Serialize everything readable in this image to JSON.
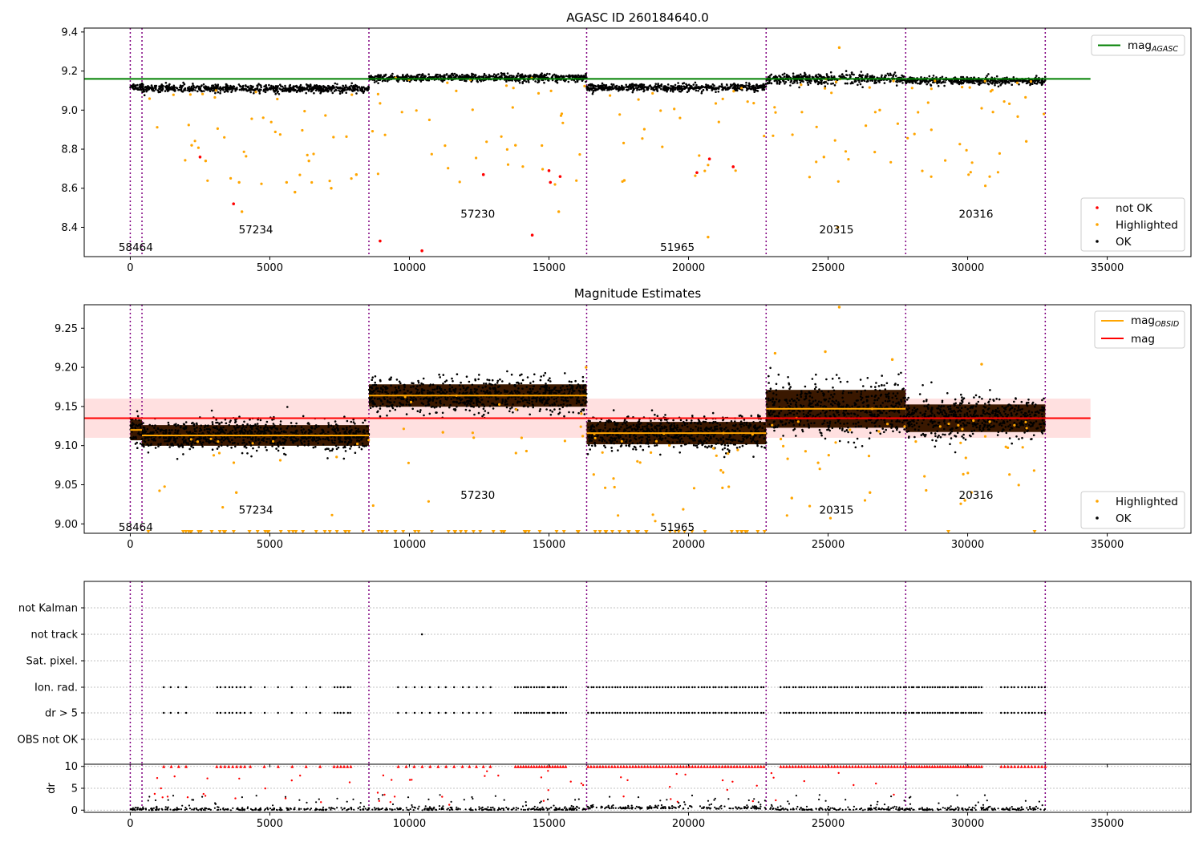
{
  "colors": {
    "ok": "#000000",
    "highlighted": "#ffa500",
    "not_ok": "#ff0000",
    "agasc_line": "#008000",
    "obsid_line": "#ffa500",
    "mag_line": "#ff0000",
    "mag_band": "#ffe0e0",
    "obs_boundary": "#800080",
    "grid": "#b0b0b0"
  },
  "chart_data": [
    {
      "type": "scatter",
      "title": "AGASC ID 260184640.0",
      "xlim": [
        -1650,
        38000
      ],
      "ylim": [
        8.25,
        9.42
      ],
      "xticks": [
        0,
        5000,
        10000,
        15000,
        20000,
        25000,
        30000,
        35000
      ],
      "yticks": [
        8.4,
        8.6,
        8.8,
        9.0,
        9.2,
        9.4
      ],
      "ytick_labels": [
        "8.4",
        "8.6",
        "8.8",
        "9.0",
        "9.2",
        "9.4"
      ],
      "obs_boundaries": [
        0,
        420,
        8550,
        16350,
        22780,
        27780,
        32780
      ],
      "segments": [
        {
          "start": 0,
          "end": 420,
          "mean": 9.12,
          "spread": 0.012
        },
        {
          "start": 420,
          "end": 8550,
          "mean": 9.11,
          "spread": 0.012
        },
        {
          "start": 8550,
          "end": 16350,
          "mean": 9.165,
          "spread": 0.012
        },
        {
          "start": 16350,
          "end": 22780,
          "mean": 9.115,
          "spread": 0.012
        },
        {
          "start": 22780,
          "end": 27780,
          "mean": 9.16,
          "spread": 0.016
        },
        {
          "start": 27780,
          "end": 32780,
          "mean": 9.15,
          "spread": 0.012
        }
      ],
      "obsid_labels": [
        {
          "text": "58464",
          "x": 200,
          "y": 8.3
        },
        {
          "text": "57234",
          "x": 4500,
          "y": 8.39
        },
        {
          "text": "57230",
          "x": 12450,
          "y": 8.47
        },
        {
          "text": "51965",
          "x": 19600,
          "y": 8.3
        },
        {
          "text": "20315",
          "x": 25300,
          "y": 8.39
        },
        {
          "text": "20316",
          "x": 30300,
          "y": 8.47
        }
      ],
      "reference_line": {
        "name": "mag_AGASC",
        "y": 9.16,
        "x_start": -1650,
        "x_end": 34400
      },
      "not_ok_points": [
        {
          "x": 2500,
          "y": 8.76
        },
        {
          "x": 3700,
          "y": 8.52
        },
        {
          "x": 8950,
          "y": 8.33
        },
        {
          "x": 10450,
          "y": 8.28
        },
        {
          "x": 12650,
          "y": 8.67
        },
        {
          "x": 14400,
          "y": 8.36
        },
        {
          "x": 15000,
          "y": 8.69
        },
        {
          "x": 15050,
          "y": 8.63
        },
        {
          "x": 15400,
          "y": 8.66
        },
        {
          "x": 20300,
          "y": 8.68
        },
        {
          "x": 20750,
          "y": 8.75
        },
        {
          "x": 21600,
          "y": 8.71
        }
      ],
      "highlighted_points": [
        {
          "x": 25400,
          "y": 9.32
        },
        {
          "x": 24850,
          "y": 8.76
        },
        {
          "x": 20700,
          "y": 8.35
        },
        {
          "x": 25350,
          "y": 8.4
        },
        {
          "x": 32100,
          "y": 8.84
        },
        {
          "x": 15350,
          "y": 8.48
        },
        {
          "x": 17700,
          "y": 8.64
        },
        {
          "x": 26850,
          "y": 9.0
        },
        {
          "x": 2700,
          "y": 8.74
        },
        {
          "x": 4000,
          "y": 8.48
        },
        {
          "x": 7200,
          "y": 8.6
        },
        {
          "x": 5600,
          "y": 8.63
        },
        {
          "x": 5900,
          "y": 8.58
        },
        {
          "x": 3900,
          "y": 8.63
        },
        {
          "x": 8100,
          "y": 8.67
        },
        {
          "x": 2200,
          "y": 8.82
        },
        {
          "x": 6400,
          "y": 8.74
        },
        {
          "x": 13800,
          "y": 8.82
        }
      ],
      "legend": {
        "entries": [
          "not OK",
          "Highlighted",
          "OK"
        ],
        "position": "lower right"
      },
      "legend_top": {
        "entries": [
          "mag_AGASC"
        ],
        "position": "upper right"
      }
    },
    {
      "type": "scatter",
      "title": "Magnitude Estimates",
      "xlim": [
        -1650,
        38000
      ],
      "ylim": [
        8.988,
        9.28
      ],
      "xticks": [
        0,
        5000,
        10000,
        15000,
        20000,
        25000,
        30000,
        35000
      ],
      "yticks": [
        9.0,
        9.05,
        9.1,
        9.15,
        9.2,
        9.25
      ],
      "ytick_labels": [
        "9.00",
        "9.05",
        "9.10",
        "9.15",
        "9.20",
        "9.25"
      ],
      "obs_boundaries": [
        0,
        420,
        8550,
        16350,
        22780,
        27780,
        32780
      ],
      "segments": [
        {
          "start": 0,
          "end": 420,
          "mean": 9.12,
          "spread": 0.012
        },
        {
          "start": 420,
          "end": 8550,
          "mean": 9.113,
          "spread": 0.012
        },
        {
          "start": 8550,
          "end": 16350,
          "mean": 9.164,
          "spread": 0.013
        },
        {
          "start": 16350,
          "end": 22780,
          "mean": 9.116,
          "spread": 0.013
        },
        {
          "start": 22780,
          "end": 27780,
          "mean": 9.147,
          "spread": 0.022
        },
        {
          "start": 27780,
          "end": 32780,
          "mean": 9.135,
          "spread": 0.016
        }
      ],
      "obsid_labels": [
        {
          "text": "58464",
          "x": 200,
          "y": 8.996
        },
        {
          "text": "57234",
          "x": 4500,
          "y": 9.018
        },
        {
          "text": "57230",
          "x": 12450,
          "y": 9.037
        },
        {
          "text": "51965",
          "x": 19600,
          "y": 8.996
        },
        {
          "text": "20315",
          "x": 25300,
          "y": 9.018
        },
        {
          "text": "20316",
          "x": 30300,
          "y": 9.037
        }
      ],
      "mag_line": {
        "name": "mag",
        "y": 9.135,
        "band": [
          9.11,
          9.16
        ],
        "x_start": -1650,
        "x_end": 34400
      },
      "obsid_line_name": "mag_OBSID",
      "highlighted_points": [
        {
          "x": 25400,
          "y": 9.278
        },
        {
          "x": 24900,
          "y": 9.22
        },
        {
          "x": 23100,
          "y": 9.218
        },
        {
          "x": 27300,
          "y": 9.21
        },
        {
          "x": 30500,
          "y": 9.204
        },
        {
          "x": 16330,
          "y": 9.2
        },
        {
          "x": 11200,
          "y": 9.117
        },
        {
          "x": 26500,
          "y": 9.04
        },
        {
          "x": 29900,
          "y": 9.03
        },
        {
          "x": 3800,
          "y": 9.04
        },
        {
          "x": 23700,
          "y": 9.033
        }
      ],
      "legend": {
        "entries": [
          "Highlighted",
          "OK"
        ],
        "position": "lower right"
      },
      "legend_top": {
        "entries": [
          "mag_OBSID",
          "mag"
        ],
        "position": "upper right"
      }
    },
    {
      "type": "scatter",
      "title": "",
      "xlim": [
        -1650,
        38000
      ],
      "flags": [
        "not Kalman",
        "not track",
        "Sat. pixel.",
        "Ion. rad.",
        "dr > 5",
        "OBS not OK"
      ],
      "obs_boundaries": [
        0,
        420,
        8550,
        16350,
        22780,
        27780,
        32780
      ],
      "not_track_points": [
        {
          "x": 10450
        }
      ],
      "flag_intervals": [
        {
          "start": 1200,
          "end": 2000,
          "count": 4
        },
        {
          "start": 3100,
          "end": 4100,
          "count": 8
        },
        {
          "start": 4300,
          "end": 6800,
          "count": 6
        },
        {
          "start": 7300,
          "end": 7900,
          "count": 6
        },
        {
          "start": 9600,
          "end": 11600,
          "count": 8
        },
        {
          "start": 11900,
          "end": 12900,
          "count": 5
        },
        {
          "start": 13800,
          "end": 15600,
          "count": 20
        },
        {
          "start": 16400,
          "end": 22700,
          "count": 60
        },
        {
          "start": 23300,
          "end": 27700,
          "count": 42
        },
        {
          "start": 27800,
          "end": 30500,
          "count": 30
        },
        {
          "start": 31200,
          "end": 32780,
          "count": 14
        }
      ]
    },
    {
      "type": "scatter",
      "title": "",
      "ylabel": "dr",
      "xlim": [
        -1650,
        38000
      ],
      "ylim": [
        -0.5,
        10.5
      ],
      "xticks": [
        0,
        5000,
        10000,
        15000,
        20000,
        25000,
        30000,
        35000
      ],
      "yticks": [
        0,
        5,
        10
      ],
      "ytick_labels": [
        "0",
        "5",
        "10"
      ],
      "obs_boundaries": [
        0,
        420,
        8550,
        16350,
        22780,
        27780,
        32780
      ],
      "clip_value": 10
    }
  ]
}
